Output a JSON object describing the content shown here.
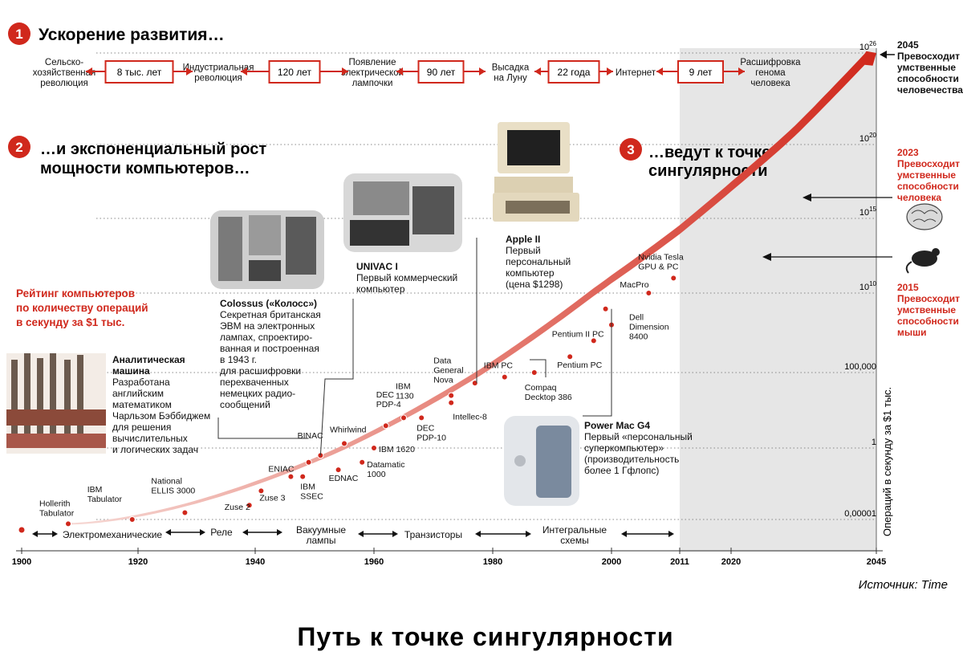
{
  "sections": {
    "s1": {
      "num": "1",
      "title": "Ускорение развития…"
    },
    "s2": {
      "num": "2",
      "title_l1": "…и экспоненциальный рост",
      "title_l2": "мощности компьютеров…"
    },
    "s3": {
      "num": "3",
      "title_l1": "…ведут к точке",
      "title_l2": "сингулярности"
    }
  },
  "milestones": [
    {
      "lines": [
        "Сельско-",
        "хозяйственная",
        "революция"
      ]
    },
    {
      "lines": [
        "Индустриальная",
        "революция"
      ]
    },
    {
      "lines": [
        "Появление",
        "электрической",
        "лампочки"
      ]
    },
    {
      "lines": [
        "Высадка",
        "на Луну"
      ]
    },
    {
      "lines": [
        "Интернет"
      ]
    },
    {
      "lines": [
        "Расшифровка",
        "генома",
        "человека"
      ]
    }
  ],
  "intervals": [
    "8 тыс. лет",
    "120 лет",
    "90 лет",
    "22 года",
    "9 лет"
  ],
  "rating": {
    "lines": [
      "Рейтинг компьютеров",
      "по количеству операций",
      "в секунду за $1 тыс."
    ]
  },
  "callouts": {
    "analytical": {
      "title": [
        "Аналитическая",
        "машина"
      ],
      "body": [
        "Разработана",
        "английским",
        "математиком",
        "Чарльзом Бэббиджем",
        "для решения",
        "вычислительных",
        "и логических задач"
      ]
    },
    "colossus": {
      "title": [
        "Colossus («Колосс»)"
      ],
      "body": [
        "Секретная британская",
        "ЭВМ на электронных",
        "лампах, спроектиро-",
        "ванная и построенная",
        "в 1943 г.",
        "для расшифровки",
        "перехваченных",
        "немецких радио-",
        "сообщений"
      ]
    },
    "univac": {
      "title": [
        "UNIVAC I"
      ],
      "body": [
        "Первый коммерческий",
        "компьютер"
      ]
    },
    "apple": {
      "title": [
        "Apple II"
      ],
      "body": [
        "Первый",
        "персональный",
        "компьютер",
        "(цена $1298)"
      ]
    },
    "g4": {
      "title": [
        "Power Mac G4"
      ],
      "body": [
        "Первый «персональный",
        "суперкомпьютер»",
        "(производительность",
        "более 1 Гфлопс)"
      ]
    }
  },
  "future": [
    {
      "year": "2045",
      "lines": [
        "Превосходит",
        "умственные",
        "способности",
        "человечества"
      ]
    },
    {
      "year": "2023",
      "lines": [
        "Превосходит",
        "умственные",
        "способности",
        "человека"
      ]
    },
    {
      "year": "2015",
      "lines": [
        "Превосходит",
        "умственные",
        "способности",
        "мыши"
      ]
    }
  ],
  "eras": [
    "Электромеханические",
    "Реле",
    "Вакуумные лампы",
    "Транзисторы",
    "Интегральные схемы"
  ],
  "source": "Источник: Time",
  "footer_title": "Путь к точке сингулярности",
  "colors": {
    "accent": "#d0281c",
    "shade": "#e6e6e6",
    "grid": "#888888"
  },
  "icons": [
    "brain-icon",
    "mouse-icon",
    "arrow-icon"
  ],
  "chart_data": {
    "type": "scatter",
    "title": "",
    "xlabel": "",
    "ylabel": "Операций в секунду за $1 тыс.",
    "y_scale": "log",
    "x_ticks": [
      "1900",
      "1920",
      "1940",
      "1960",
      "1980",
      "2000",
      "2011",
      "2020",
      "2045"
    ],
    "y_ticks": [
      {
        "label": "0,00001",
        "value": 1e-05
      },
      {
        "label": "1",
        "value": 1
      },
      {
        "label": "100,000",
        "value": 100000
      },
      {
        "label": "10^10",
        "value": 10000000000.0
      },
      {
        "label": "10^15",
        "value": 1000000000000000.0
      },
      {
        "label": "10^20",
        "value": 1e+20
      },
      {
        "label": "10^26",
        "value": 1e+26
      }
    ],
    "points": [
      {
        "name": "Hollerith Tabulator",
        "year": 1908,
        "ops": 5e-06
      },
      {
        "name": "IBM Tabulator",
        "year": 1919,
        "ops": 1e-05
      },
      {
        "name": "National ELLIS 3000",
        "year": 1928,
        "ops": 3e-05
      },
      {
        "name": "Zuse 2",
        "year": 1939,
        "ops": 0.0001
      },
      {
        "name": "Zuse 3",
        "year": 1941,
        "ops": 0.001
      },
      {
        "name": "ENIAC",
        "year": 1946,
        "ops": 0.01
      },
      {
        "name": "BINAC",
        "year": 1949,
        "ops": 0.1
      },
      {
        "name": "IBM SSEC",
        "year": 1948,
        "ops": 0.01
      },
      {
        "name": "UNIVAC I",
        "year": 1951,
        "ops": 0.3
      },
      {
        "name": "EDNAC",
        "year": 1954,
        "ops": 0.03
      },
      {
        "name": "Whirlwind",
        "year": 1955,
        "ops": 2
      },
      {
        "name": "Datamatic 1000",
        "year": 1958,
        "ops": 0.1
      },
      {
        "name": "IBM 1620",
        "year": 1960,
        "ops": 1
      },
      {
        "name": "DEC PDP-4",
        "year": 1962,
        "ops": 30
      },
      {
        "name": "IBM 1130",
        "year": 1965,
        "ops": 100
      },
      {
        "name": "DEC PDP-10",
        "year": 1968,
        "ops": 100
      },
      {
        "name": "Data General Nova",
        "year": 1973,
        "ops": 3000
      },
      {
        "name": "Intellec-8",
        "year": 1973,
        "ops": 1000
      },
      {
        "name": "Apple II",
        "year": 1977,
        "ops": 20000
      },
      {
        "name": "IBM PC",
        "year": 1982,
        "ops": 50000
      },
      {
        "name": "Compaq Deckpro 386",
        "year": 1987,
        "ops": 100000
      },
      {
        "name": "Pentium PC",
        "year": 1993,
        "ops": 1000000
      },
      {
        "name": "Pentium II PC",
        "year": 1997,
        "ops": 10000000
      },
      {
        "name": "Power Mac G4",
        "year": 1999,
        "ops": 1000000000
      },
      {
        "name": "Dell Dimension 8400",
        "year": 2000,
        "ops": 100000000
      },
      {
        "name": "MacPro",
        "year": 2006,
        "ops": 10000000000.0
      },
      {
        "name": "Nvidia Tesla GPU & PC",
        "year": 2010,
        "ops": 100000000000.0
      }
    ],
    "label_text": {
      "Hollerith Tabulator": [
        "Hollerith",
        "Tabulator"
      ],
      "IBM Tabulator": [
        "IBM",
        "Tabulator"
      ],
      "National ELLIS 3000": [
        "National",
        "ELLIS 3000"
      ],
      "Zuse 2": [
        "Zuse 2"
      ],
      "Zuse 3": [
        "Zuse 3"
      ],
      "ENIAC": [
        "ENIAC"
      ],
      "BINAC": [
        "BINAC"
      ],
      "IBM SSEC": [
        "IBM",
        "SSEC"
      ],
      "EDNAC": [
        "EDNAC"
      ],
      "Whirlwind": [
        "Whirlwind"
      ],
      "Datamatic 1000": [
        "Datamatic",
        "1000"
      ],
      "IBM 1620": [
        "IBM 1620"
      ],
      "DEC PDP-4": [
        "DEC",
        "PDP-4"
      ],
      "IBM 1130": [
        "IBM",
        "1130"
      ],
      "DEC PDP-10": [
        "DEC",
        "PDP-10"
      ],
      "Data General Nova": [
        "Data",
        "General",
        "Nova"
      ],
      "Intellec-8": [
        "Intellec-8"
      ],
      "IBM PC": [
        "IBM PC"
      ],
      "Compaq Deckpro 386": [
        "Compaq",
        "Decktop 386"
      ],
      "Pentium PC": [
        "Pentium PC"
      ],
      "Pentium II PC": [
        "Pentium II PC"
      ],
      "Dell Dimension 8400": [
        "Dell",
        "Dimension",
        "8400"
      ],
      "MacPro": [
        "MacPro"
      ],
      "Nvidia Tesla GPU & PC": [
        "Nvidia Tesla",
        "GPU & PC"
      ]
    },
    "projection": {
      "from_year": 2011,
      "to_year": 2045,
      "to_ops": 1e+26
    },
    "grid": true,
    "legend": "none"
  }
}
